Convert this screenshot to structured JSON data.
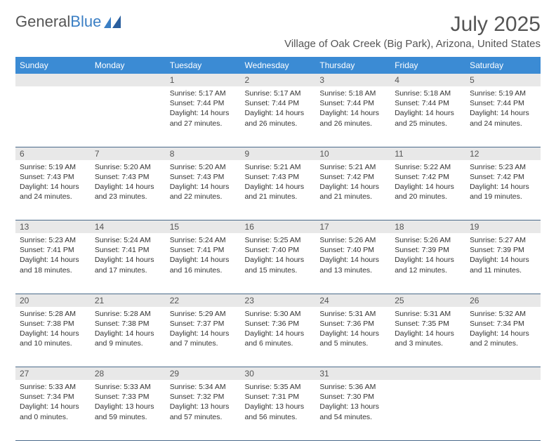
{
  "logo": {
    "text1": "General",
    "text2": "Blue"
  },
  "title": "July 2025",
  "location": "Village of Oak Creek (Big Park), Arizona, United States",
  "colors": {
    "header_bg": "#3b8bd4",
    "header_fg": "#ffffff",
    "daynum_bg": "#e8e8e8",
    "border": "#4a6a8a",
    "title_color": "#555555",
    "text_color": "#333333",
    "logo_gray": "#555555",
    "logo_blue": "#3b7fc4"
  },
  "weekdays": [
    "Sunday",
    "Monday",
    "Tuesday",
    "Wednesday",
    "Thursday",
    "Friday",
    "Saturday"
  ],
  "weeks": [
    {
      "nums": [
        "",
        "",
        "1",
        "2",
        "3",
        "4",
        "5"
      ],
      "cells": [
        null,
        null,
        {
          "sunrise": "Sunrise: 5:17 AM",
          "sunset": "Sunset: 7:44 PM",
          "daylight": "Daylight: 14 hours and 27 minutes."
        },
        {
          "sunrise": "Sunrise: 5:17 AM",
          "sunset": "Sunset: 7:44 PM",
          "daylight": "Daylight: 14 hours and 26 minutes."
        },
        {
          "sunrise": "Sunrise: 5:18 AM",
          "sunset": "Sunset: 7:44 PM",
          "daylight": "Daylight: 14 hours and 26 minutes."
        },
        {
          "sunrise": "Sunrise: 5:18 AM",
          "sunset": "Sunset: 7:44 PM",
          "daylight": "Daylight: 14 hours and 25 minutes."
        },
        {
          "sunrise": "Sunrise: 5:19 AM",
          "sunset": "Sunset: 7:44 PM",
          "daylight": "Daylight: 14 hours and 24 minutes."
        }
      ]
    },
    {
      "nums": [
        "6",
        "7",
        "8",
        "9",
        "10",
        "11",
        "12"
      ],
      "cells": [
        {
          "sunrise": "Sunrise: 5:19 AM",
          "sunset": "Sunset: 7:43 PM",
          "daylight": "Daylight: 14 hours and 24 minutes."
        },
        {
          "sunrise": "Sunrise: 5:20 AM",
          "sunset": "Sunset: 7:43 PM",
          "daylight": "Daylight: 14 hours and 23 minutes."
        },
        {
          "sunrise": "Sunrise: 5:20 AM",
          "sunset": "Sunset: 7:43 PM",
          "daylight": "Daylight: 14 hours and 22 minutes."
        },
        {
          "sunrise": "Sunrise: 5:21 AM",
          "sunset": "Sunset: 7:43 PM",
          "daylight": "Daylight: 14 hours and 21 minutes."
        },
        {
          "sunrise": "Sunrise: 5:21 AM",
          "sunset": "Sunset: 7:42 PM",
          "daylight": "Daylight: 14 hours and 21 minutes."
        },
        {
          "sunrise": "Sunrise: 5:22 AM",
          "sunset": "Sunset: 7:42 PM",
          "daylight": "Daylight: 14 hours and 20 minutes."
        },
        {
          "sunrise": "Sunrise: 5:23 AM",
          "sunset": "Sunset: 7:42 PM",
          "daylight": "Daylight: 14 hours and 19 minutes."
        }
      ]
    },
    {
      "nums": [
        "13",
        "14",
        "15",
        "16",
        "17",
        "18",
        "19"
      ],
      "cells": [
        {
          "sunrise": "Sunrise: 5:23 AM",
          "sunset": "Sunset: 7:41 PM",
          "daylight": "Daylight: 14 hours and 18 minutes."
        },
        {
          "sunrise": "Sunrise: 5:24 AM",
          "sunset": "Sunset: 7:41 PM",
          "daylight": "Daylight: 14 hours and 17 minutes."
        },
        {
          "sunrise": "Sunrise: 5:24 AM",
          "sunset": "Sunset: 7:41 PM",
          "daylight": "Daylight: 14 hours and 16 minutes."
        },
        {
          "sunrise": "Sunrise: 5:25 AM",
          "sunset": "Sunset: 7:40 PM",
          "daylight": "Daylight: 14 hours and 15 minutes."
        },
        {
          "sunrise": "Sunrise: 5:26 AM",
          "sunset": "Sunset: 7:40 PM",
          "daylight": "Daylight: 14 hours and 13 minutes."
        },
        {
          "sunrise": "Sunrise: 5:26 AM",
          "sunset": "Sunset: 7:39 PM",
          "daylight": "Daylight: 14 hours and 12 minutes."
        },
        {
          "sunrise": "Sunrise: 5:27 AM",
          "sunset": "Sunset: 7:39 PM",
          "daylight": "Daylight: 14 hours and 11 minutes."
        }
      ]
    },
    {
      "nums": [
        "20",
        "21",
        "22",
        "23",
        "24",
        "25",
        "26"
      ],
      "cells": [
        {
          "sunrise": "Sunrise: 5:28 AM",
          "sunset": "Sunset: 7:38 PM",
          "daylight": "Daylight: 14 hours and 10 minutes."
        },
        {
          "sunrise": "Sunrise: 5:28 AM",
          "sunset": "Sunset: 7:38 PM",
          "daylight": "Daylight: 14 hours and 9 minutes."
        },
        {
          "sunrise": "Sunrise: 5:29 AM",
          "sunset": "Sunset: 7:37 PM",
          "daylight": "Daylight: 14 hours and 7 minutes."
        },
        {
          "sunrise": "Sunrise: 5:30 AM",
          "sunset": "Sunset: 7:36 PM",
          "daylight": "Daylight: 14 hours and 6 minutes."
        },
        {
          "sunrise": "Sunrise: 5:31 AM",
          "sunset": "Sunset: 7:36 PM",
          "daylight": "Daylight: 14 hours and 5 minutes."
        },
        {
          "sunrise": "Sunrise: 5:31 AM",
          "sunset": "Sunset: 7:35 PM",
          "daylight": "Daylight: 14 hours and 3 minutes."
        },
        {
          "sunrise": "Sunrise: 5:32 AM",
          "sunset": "Sunset: 7:34 PM",
          "daylight": "Daylight: 14 hours and 2 minutes."
        }
      ]
    },
    {
      "nums": [
        "27",
        "28",
        "29",
        "30",
        "31",
        "",
        ""
      ],
      "cells": [
        {
          "sunrise": "Sunrise: 5:33 AM",
          "sunset": "Sunset: 7:34 PM",
          "daylight": "Daylight: 14 hours and 0 minutes."
        },
        {
          "sunrise": "Sunrise: 5:33 AM",
          "sunset": "Sunset: 7:33 PM",
          "daylight": "Daylight: 13 hours and 59 minutes."
        },
        {
          "sunrise": "Sunrise: 5:34 AM",
          "sunset": "Sunset: 7:32 PM",
          "daylight": "Daylight: 13 hours and 57 minutes."
        },
        {
          "sunrise": "Sunrise: 5:35 AM",
          "sunset": "Sunset: 7:31 PM",
          "daylight": "Daylight: 13 hours and 56 minutes."
        },
        {
          "sunrise": "Sunrise: 5:36 AM",
          "sunset": "Sunset: 7:30 PM",
          "daylight": "Daylight: 13 hours and 54 minutes."
        },
        null,
        null
      ]
    }
  ]
}
